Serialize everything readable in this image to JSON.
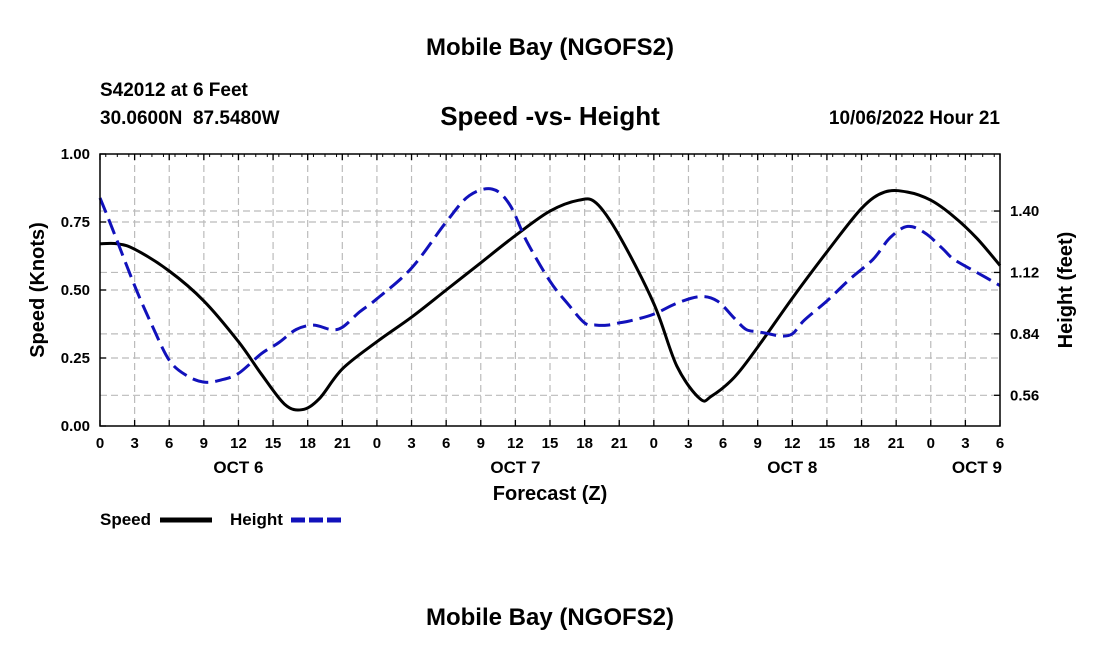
{
  "page_title": "Mobile Bay (NGOFS2)",
  "footer_title": "Mobile Bay (NGOFS2)",
  "station": {
    "name": "S42012 at 6 Feet",
    "coords": "30.0600N  87.5480W",
    "timestamp": "10/06/2022 Hour 21"
  },
  "colors": {
    "speed": "#000000",
    "height": "#1111bb",
    "grid": "#bbbbbb"
  },
  "chart_data": {
    "type": "line",
    "title": "Speed -vs- Height",
    "xlabel": "Forecast (Z)",
    "ylabel_left": "Speed (Knots)",
    "ylabel_right": "Height (feet)",
    "xlim": [
      0,
      78
    ],
    "ylim_left": [
      0,
      1
    ],
    "ylim_right": [
      0.42,
      1.66
    ],
    "x_tick_values": [
      0,
      3,
      6,
      9,
      12,
      15,
      18,
      21,
      24,
      27,
      30,
      33,
      36,
      39,
      42,
      45,
      48,
      51,
      54,
      57,
      60,
      63,
      66,
      69,
      72,
      75,
      78
    ],
    "x_tick_labels": [
      "0",
      "3",
      "6",
      "9",
      "12",
      "15",
      "18",
      "21",
      "0",
      "3",
      "6",
      "9",
      "12",
      "15",
      "18",
      "21",
      "0",
      "3",
      "6",
      "9",
      "12",
      "15",
      "18",
      "21",
      "0",
      "3",
      "6"
    ],
    "date_labels": [
      {
        "label": "OCT 6",
        "x": 12
      },
      {
        "label": "OCT 7",
        "x": 36
      },
      {
        "label": "OCT 8",
        "x": 60
      },
      {
        "label": "OCT 9",
        "x": 76
      }
    ],
    "y_left_ticks": [
      0,
      0.25,
      0.5,
      0.75,
      1.0
    ],
    "y_left_labels": [
      "0.00",
      "0.25",
      "0.50",
      "0.75",
      "1.00"
    ],
    "y_right_ticks": [
      0.56,
      0.84,
      1.12,
      1.4
    ],
    "y_right_labels": [
      "0.56",
      "0.84",
      "1.12",
      "1.40"
    ],
    "series": [
      {
        "name": "Speed",
        "axis": "left",
        "style": "solid",
        "x": [
          0,
          1.5,
          3,
          6,
          9,
          12,
          14,
          16,
          17.5,
          19,
          21,
          24,
          27,
          30,
          33,
          36,
          39,
          41.5,
          43,
          45,
          48,
          50,
          52,
          53,
          55,
          57,
          60,
          63,
          66,
          68,
          70,
          72,
          74,
          76,
          78
        ],
        "y": [
          0.67,
          0.67,
          0.65,
          0.57,
          0.46,
          0.31,
          0.19,
          0.08,
          0.06,
          0.1,
          0.21,
          0.31,
          0.4,
          0.5,
          0.6,
          0.7,
          0.79,
          0.83,
          0.82,
          0.7,
          0.45,
          0.22,
          0.1,
          0.11,
          0.18,
          0.29,
          0.47,
          0.64,
          0.8,
          0.86,
          0.86,
          0.83,
          0.77,
          0.69,
          0.59
        ]
      },
      {
        "name": "Height",
        "axis": "right",
        "style": "dashed",
        "x": [
          0,
          1,
          3,
          4.5,
          6,
          7.5,
          9,
          10.5,
          12,
          14,
          15.5,
          17,
          18.5,
          20,
          21,
          22.5,
          24,
          27,
          30,
          32,
          34,
          35.5,
          37,
          39,
          40.5,
          42,
          43,
          44,
          45,
          46,
          48,
          50,
          52,
          53.5,
          55,
          56,
          57,
          58,
          59,
          60,
          61,
          63,
          65,
          67,
          68.5,
          70,
          71.5,
          73,
          74,
          76,
          78
        ],
        "y": [
          1.46,
          1.33,
          1.06,
          0.88,
          0.72,
          0.65,
          0.62,
          0.63,
          0.66,
          0.75,
          0.8,
          0.86,
          0.88,
          0.86,
          0.87,
          0.94,
          1.0,
          1.14,
          1.35,
          1.47,
          1.5,
          1.43,
          1.26,
          1.08,
          0.98,
          0.89,
          0.88,
          0.88,
          0.89,
          0.9,
          0.93,
          0.98,
          1.01,
          0.99,
          0.91,
          0.86,
          0.85,
          0.84,
          0.83,
          0.84,
          0.9,
          0.99,
          1.09,
          1.18,
          1.28,
          1.33,
          1.3,
          1.23,
          1.18,
          1.12,
          1.06
        ]
      }
    ],
    "legend": [
      "Speed",
      "Height"
    ],
    "legend_position": "bottom-left",
    "grid": true
  }
}
